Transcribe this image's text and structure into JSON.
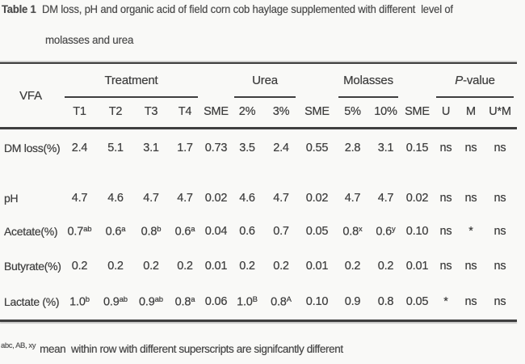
{
  "title": {
    "bold_label": "Table 1",
    "line1_rest": "DM loss, pH and organic acid of field corn cob haylage supplemented with different  level of",
    "line2": "molasses and urea"
  },
  "table": {
    "corner_label": "VFA",
    "groups": [
      {
        "label": "Treatment",
        "col_start": 2,
        "col_span": 4
      },
      {
        "label": "Urea",
        "col_start": 7,
        "col_span": 2
      },
      {
        "label": "Molasses",
        "col_start": 10,
        "col_span": 2
      },
      {
        "label_head": "P",
        "label_tail": "-value",
        "col_start": 13,
        "col_span": 3
      }
    ],
    "columns": [
      "T1",
      "T2",
      "T3",
      "T4",
      "SME",
      "2%",
      "3%",
      "SME",
      "5%",
      "10%",
      "SME",
      "U",
      "M",
      "U*M"
    ],
    "rows": [
      {
        "label": "DM loss(%)",
        "cells": [
          {
            "v": "2.4"
          },
          {
            "v": "5.1"
          },
          {
            "v": "3.1"
          },
          {
            "v": "1.7"
          },
          {
            "v": "0.73"
          },
          {
            "v": "3.5"
          },
          {
            "v": "2.4"
          },
          {
            "v": "0.55"
          },
          {
            "v": "2.8"
          },
          {
            "v": "3.1"
          },
          {
            "v": "0.15"
          },
          {
            "v": "ns"
          },
          {
            "v": "ns"
          },
          {
            "v": "ns"
          }
        ]
      },
      {
        "label": "pH",
        "cells": [
          {
            "v": "4.7"
          },
          {
            "v": "4.6"
          },
          {
            "v": "4.7"
          },
          {
            "v": "4.7"
          },
          {
            "v": "0.02"
          },
          {
            "v": "4.6"
          },
          {
            "v": "4.7"
          },
          {
            "v": "0.02"
          },
          {
            "v": "4.7"
          },
          {
            "v": "4.7"
          },
          {
            "v": "0.02"
          },
          {
            "v": "ns"
          },
          {
            "v": "ns"
          },
          {
            "v": "ns"
          }
        ]
      },
      {
        "label": "Acetate(%)",
        "cells": [
          {
            "v": "0.7",
            "s": "ab"
          },
          {
            "v": "0.6",
            "s": "a"
          },
          {
            "v": "0.8",
            "s": "b"
          },
          {
            "v": "0.6",
            "s": "a"
          },
          {
            "v": "0.04"
          },
          {
            "v": "0.6"
          },
          {
            "v": "0.7"
          },
          {
            "v": "0.05"
          },
          {
            "v": "0.8",
            "s": "x"
          },
          {
            "v": "0.6",
            "s": "y"
          },
          {
            "v": "0.10"
          },
          {
            "v": "ns"
          },
          {
            "v": "*"
          },
          {
            "v": "ns"
          }
        ]
      },
      {
        "label": "Butyrate(%)",
        "cells": [
          {
            "v": "0.2"
          },
          {
            "v": "0.2"
          },
          {
            "v": "0.2"
          },
          {
            "v": "0.2"
          },
          {
            "v": "0.01"
          },
          {
            "v": "0.2"
          },
          {
            "v": "0.2"
          },
          {
            "v": "0.01"
          },
          {
            "v": "0.2"
          },
          {
            "v": "0.2"
          },
          {
            "v": "0.01"
          },
          {
            "v": "ns"
          },
          {
            "v": "ns"
          },
          {
            "v": "ns"
          }
        ]
      },
      {
        "label": "Lactate (%)",
        "cells": [
          {
            "v": "1.0",
            "s": "b"
          },
          {
            "v": "0.9",
            "s": "ab"
          },
          {
            "v": "0.9",
            "s": "ab"
          },
          {
            "v": "0.8",
            "s": "a"
          },
          {
            "v": "0.06"
          },
          {
            "v": "1.0",
            "s": "B"
          },
          {
            "v": "0.8",
            "s": "A"
          },
          {
            "v": "0.10"
          },
          {
            "v": "0.9"
          },
          {
            "v": "0.8"
          },
          {
            "v": "0.05"
          },
          {
            "v": "*"
          },
          {
            "v": "ns"
          },
          {
            "v": "ns"
          }
        ]
      }
    ]
  },
  "footnote": {
    "superscript": "abc, AB, xy",
    "text": "mean  within row with different superscripts are signifcantly different"
  }
}
